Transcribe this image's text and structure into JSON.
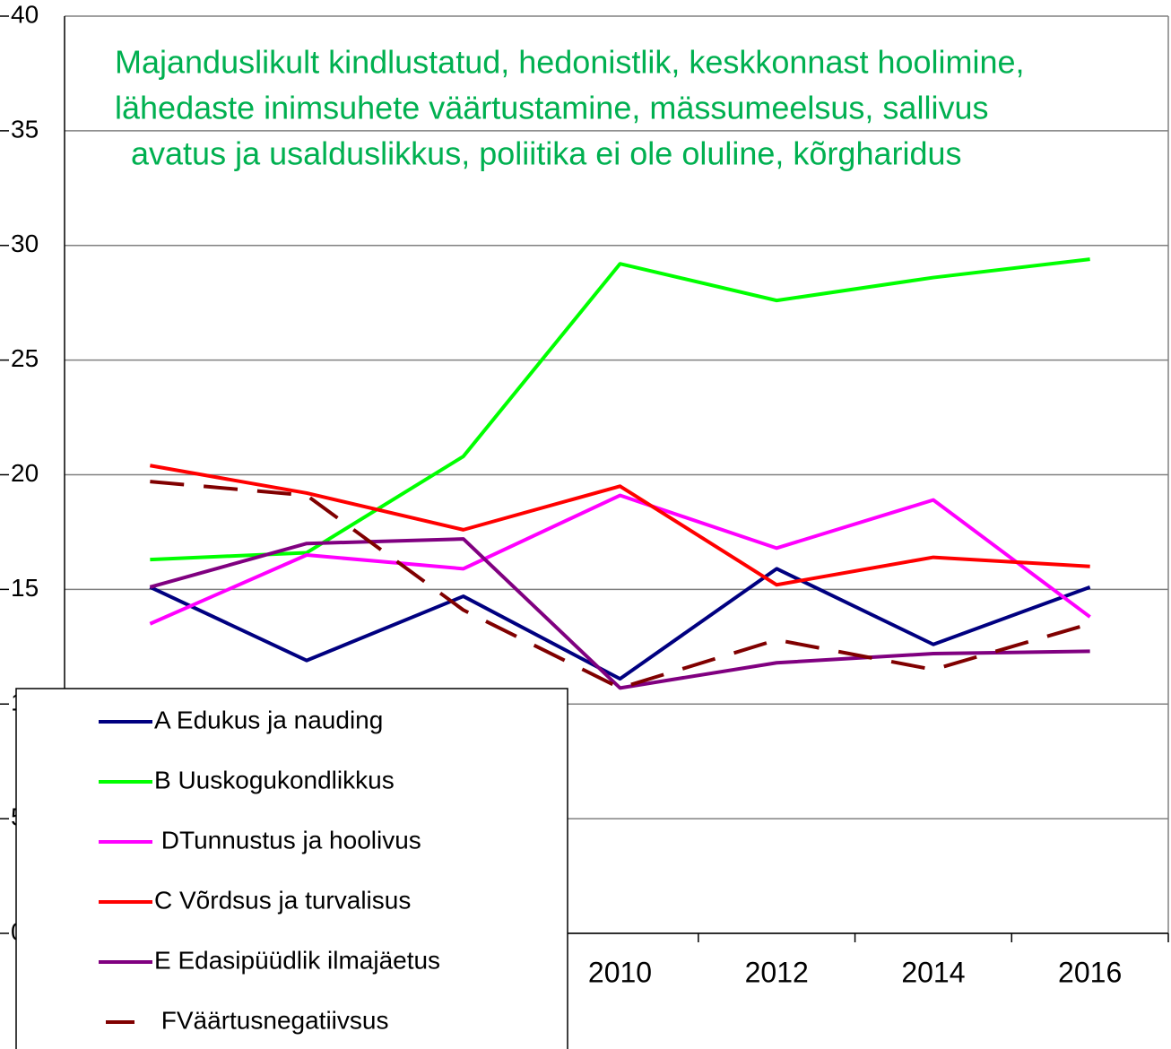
{
  "chart_data": {
    "type": "line",
    "annotation": [
      "Majanduslikult kindlustatud, hedonistlik, keskkonnast hoolimine,",
      "lähedaste inimsuhete väärtustamine, mässumeelsus, sallivus",
      " avatus ja usalduslikkus, poliitika ei ole oluline, kõrgharidus"
    ],
    "categories": [
      null,
      null,
      null,
      "2010",
      "2012",
      "2014",
      "2016"
    ],
    "series": [
      {
        "name": "A Edukus ja nauding",
        "color": "#000080",
        "values": [
          15.1,
          11.9,
          14.7,
          11.1,
          15.9,
          12.6,
          15.1
        ]
      },
      {
        "name": "B Uuskogukondlikkus",
        "color": "#00ff00",
        "values": [
          16.3,
          16.6,
          20.8,
          29.2,
          27.6,
          28.6,
          29.4
        ]
      },
      {
        "name": " DTunnustus ja hoolivus",
        "color": "#ff00ff",
        "values": [
          13.5,
          16.5,
          15.9,
          19.1,
          16.8,
          18.9,
          13.8
        ]
      },
      {
        "name": "C Võrdsus ja turvalisus",
        "color": "#ff0000",
        "values": [
          20.4,
          19.2,
          17.6,
          19.5,
          15.2,
          16.4,
          16.0
        ]
      },
      {
        "name": "E Edasipüüdlik ilmajäetus",
        "color": "#800080",
        "values": [
          15.1,
          17.0,
          17.2,
          10.7,
          11.8,
          12.2,
          12.3
        ]
      },
      {
        "name": " FVäärtusnegatiivsus",
        "color": "#800000",
        "dashed": true,
        "values": [
          19.7,
          19.1,
          14.1,
          10.7,
          12.8,
          11.5,
          13.5
        ]
      }
    ],
    "ylim": [
      0,
      40
    ],
    "yticks": [
      0,
      5,
      10,
      15,
      20,
      25,
      30,
      35,
      40
    ],
    "grid": true
  }
}
